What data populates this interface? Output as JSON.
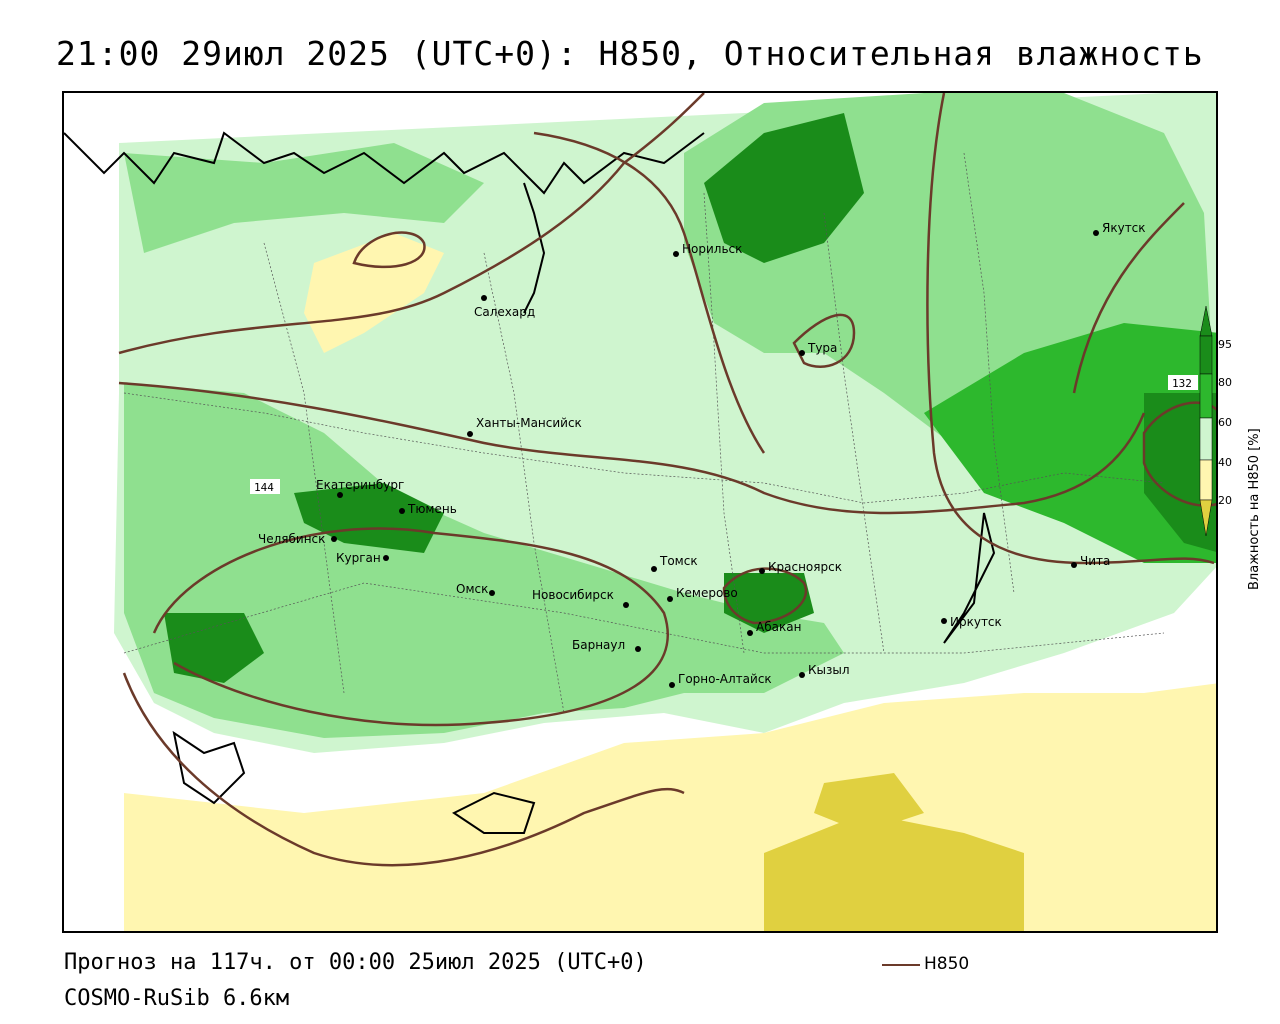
{
  "title": "21:00 29июл 2025 (UTC+0): H850, Относительная влажность",
  "footer": {
    "forecast": "Прогноз на 117ч. от 00:00 25июл 2025 (UTC+0)",
    "model": "COSMO-RuSib 6.6км",
    "legend_label": "H850"
  },
  "colorbar": {
    "title": "Влажность на H850 [%]",
    "ticks": [
      "95",
      "80",
      "60",
      "40",
      "20"
    ],
    "colors": {
      "c95": "#1a8c1a",
      "c80": "#2db82d",
      "c60": "#8fe08f",
      "c40": "#cff5cf",
      "c_low": "#fff6b0",
      "c_min": "#e0d040"
    }
  },
  "contour_labels": {
    "l144": "144",
    "l132": "132"
  },
  "cities": [
    {
      "name": "Салехард"
    },
    {
      "name": "Норильск"
    },
    {
      "name": "Тура"
    },
    {
      "name": "Якутск"
    },
    {
      "name": "Ханты-Мансийск"
    },
    {
      "name": "Екатеринбург"
    },
    {
      "name": "Тюмень"
    },
    {
      "name": "Челябинск"
    },
    {
      "name": "Курган"
    },
    {
      "name": "Омск"
    },
    {
      "name": "Новосибирск"
    },
    {
      "name": "Томск"
    },
    {
      "name": "Кемерово"
    },
    {
      "name": "Барнаул"
    },
    {
      "name": "Красноярск"
    },
    {
      "name": "Абакан"
    },
    {
      "name": "Горно-Алтайск"
    },
    {
      "name": "Кызыл"
    },
    {
      "name": "Иркутск"
    },
    {
      "name": "Чита"
    }
  ]
}
